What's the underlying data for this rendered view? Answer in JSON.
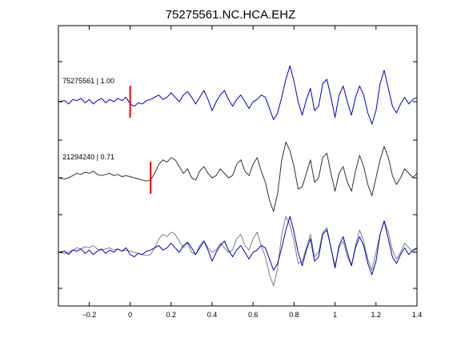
{
  "chart_data": {
    "type": "line",
    "title": "75275561.NC.HCA.EHZ",
    "xlabel": "",
    "ylabel": "",
    "xlim": [
      -0.35,
      1.4
    ],
    "x_ticks": [
      -0.2,
      0,
      0.2,
      0.4,
      0.6,
      0.8,
      1,
      1.2,
      1.4
    ],
    "x_tick_labels": [
      "−0.2",
      "0",
      "0.2",
      "0.4",
      "0.6",
      "0.8",
      "1",
      "1.2",
      "1.4"
    ],
    "grid": false,
    "colors": {
      "blue": "#0000cc",
      "dark": "#333333",
      "gray": "#7f7f7f",
      "pick": "#ff0000"
    },
    "annotations": [
      {
        "text": "75275561 | 1.00",
        "x": -0.33,
        "trace": 0
      },
      {
        "text": "21294240 | 0.71",
        "x": -0.33,
        "trace": 1
      }
    ],
    "picks": [
      {
        "x": 0.0,
        "trace": 0
      },
      {
        "x": 0.1,
        "trace": 1
      }
    ],
    "series": [
      {
        "color": "blue",
        "x": [
          -0.35,
          -0.32,
          -0.3,
          -0.28,
          -0.26,
          -0.24,
          -0.22,
          -0.2,
          -0.18,
          -0.16,
          -0.14,
          -0.12,
          -0.1,
          -0.08,
          -0.06,
          -0.04,
          -0.02,
          0,
          0.02,
          0.04,
          0.06,
          0.08,
          0.1,
          0.12,
          0.14,
          0.16,
          0.18,
          0.2,
          0.22,
          0.24,
          0.26,
          0.28,
          0.3,
          0.32,
          0.34,
          0.36,
          0.38,
          0.4,
          0.42,
          0.44,
          0.46,
          0.48,
          0.5,
          0.52,
          0.54,
          0.56,
          0.58,
          0.6,
          0.62,
          0.64,
          0.66,
          0.68,
          0.7,
          0.72,
          0.74,
          0.76,
          0.78,
          0.8,
          0.82,
          0.84,
          0.86,
          0.88,
          0.9,
          0.92,
          0.94,
          0.96,
          0.98,
          1,
          1.02,
          1.04,
          1.06,
          1.08,
          1.1,
          1.12,
          1.14,
          1.16,
          1.18,
          1.2,
          1.22,
          1.24,
          1.26,
          1.28,
          1.3,
          1.32,
          1.34,
          1.36,
          1.38,
          1.4
        ],
        "y": [
          0.0,
          0.05,
          -0.1,
          0.1,
          0.05,
          0.15,
          -0.05,
          0.1,
          -0.1,
          0.05,
          0.15,
          -0.05,
          0.1,
          0.0,
          0.15,
          0.05,
          0.2,
          -0.1,
          -0.2,
          -0.05,
          -0.1,
          0.05,
          0.1,
          0.2,
          0.3,
          0.1,
          0.2,
          0.4,
          0.2,
          0.0,
          0.3,
          0.45,
          0.2,
          -0.1,
          0.2,
          0.5,
          0.1,
          -0.4,
          0.0,
          0.3,
          0.5,
          0.1,
          -0.2,
          0.1,
          0.3,
          0.0,
          -0.3,
          0.0,
          0.1,
          0.3,
          0.2,
          -0.3,
          -0.8,
          -0.5,
          0.2,
          1.0,
          1.6,
          0.9,
          0.0,
          -0.6,
          0.1,
          0.6,
          -0.4,
          -0.2,
          0.8,
          1.0,
          0.2,
          -0.7,
          0.3,
          0.7,
          0.0,
          -0.6,
          0.2,
          0.7,
          0.3,
          -0.5,
          -1.0,
          -0.4,
          0.8,
          1.4,
          0.6,
          -0.2,
          -0.5,
          -0.1,
          0.2,
          -0.1,
          0.1,
          0.2
        ]
      },
      {
        "color": "dark",
        "x": [
          -0.35,
          -0.32,
          -0.3,
          -0.28,
          -0.26,
          -0.24,
          -0.22,
          -0.2,
          -0.18,
          -0.16,
          -0.14,
          -0.12,
          -0.1,
          -0.08,
          -0.06,
          -0.04,
          -0.02,
          0,
          0.02,
          0.04,
          0.06,
          0.08,
          0.1,
          0.12,
          0.14,
          0.16,
          0.18,
          0.2,
          0.22,
          0.24,
          0.26,
          0.28,
          0.3,
          0.32,
          0.34,
          0.36,
          0.38,
          0.4,
          0.42,
          0.44,
          0.46,
          0.48,
          0.5,
          0.52,
          0.54,
          0.56,
          0.58,
          0.6,
          0.62,
          0.64,
          0.66,
          0.68,
          0.7,
          0.72,
          0.74,
          0.76,
          0.78,
          0.8,
          0.82,
          0.84,
          0.86,
          0.88,
          0.9,
          0.92,
          0.94,
          0.96,
          0.98,
          1,
          1.02,
          1.04,
          1.06,
          1.08,
          1.1,
          1.12,
          1.14,
          1.16,
          1.18,
          1.2,
          1.22,
          1.24,
          1.26,
          1.28,
          1.3,
          1.32,
          1.34,
          1.36,
          1.38,
          1.4
        ],
        "y": [
          0.0,
          -0.05,
          0.0,
          0.1,
          0.2,
          0.15,
          0.25,
          0.2,
          0.3,
          0.15,
          0.1,
          0.15,
          0.2,
          0.1,
          0.15,
          0.05,
          0.1,
          0.05,
          0.0,
          -0.05,
          -0.1,
          -0.15,
          -0.1,
          0.2,
          0.6,
          0.8,
          0.7,
          0.9,
          0.8,
          0.5,
          0.2,
          0.4,
          0.0,
          -0.1,
          0.3,
          0.5,
          0.2,
          0.0,
          0.1,
          0.4,
          0.2,
          0.0,
          0.1,
          0.6,
          0.8,
          0.3,
          0.1,
          0.6,
          0.9,
          0.3,
          -0.2,
          -1.0,
          -1.5,
          -0.7,
          0.8,
          1.6,
          1.2,
          0.5,
          -0.5,
          -0.4,
          0.2,
          0.8,
          -0.2,
          0.0,
          0.9,
          1.1,
          0.2,
          -0.6,
          0.2,
          0.5,
          -0.2,
          -0.6,
          0.3,
          1.0,
          0.5,
          -0.3,
          -0.8,
          0.0,
          0.8,
          1.4,
          0.9,
          0.1,
          -0.3,
          0.0,
          0.4,
          0.2,
          0.0,
          0.2
        ]
      },
      {
        "color": "gray",
        "x": [
          -0.35,
          -0.32,
          -0.3,
          -0.28,
          -0.26,
          -0.24,
          -0.22,
          -0.2,
          -0.18,
          -0.16,
          -0.14,
          -0.12,
          -0.1,
          -0.08,
          -0.06,
          -0.04,
          -0.02,
          0,
          0.02,
          0.04,
          0.06,
          0.08,
          0.1,
          0.12,
          0.14,
          0.16,
          0.18,
          0.2,
          0.22,
          0.24,
          0.26,
          0.28,
          0.3,
          0.32,
          0.34,
          0.36,
          0.38,
          0.4,
          0.42,
          0.44,
          0.46,
          0.48,
          0.5,
          0.52,
          0.54,
          0.56,
          0.58,
          0.6,
          0.62,
          0.64,
          0.66,
          0.68,
          0.7,
          0.72,
          0.74,
          0.76,
          0.78,
          0.8,
          0.82,
          0.84,
          0.86,
          0.88,
          0.9,
          0.92,
          0.94,
          0.96,
          0.98,
          1,
          1.02,
          1.04,
          1.06,
          1.08,
          1.1,
          1.12,
          1.14,
          1.16,
          1.18,
          1.2,
          1.22,
          1.24,
          1.26,
          1.28,
          1.3,
          1.32,
          1.34,
          1.36,
          1.38,
          1.4
        ],
        "y": [
          0.0,
          -0.05,
          0.0,
          0.1,
          0.2,
          0.15,
          0.25,
          0.2,
          0.3,
          0.15,
          0.1,
          0.15,
          0.2,
          0.1,
          0.15,
          0.05,
          0.1,
          0.05,
          0.0,
          -0.05,
          -0.1,
          -0.15,
          -0.1,
          0.2,
          0.6,
          0.8,
          0.7,
          0.9,
          0.8,
          0.5,
          0.2,
          0.4,
          0.0,
          -0.1,
          0.3,
          0.5,
          0.2,
          0.0,
          0.1,
          0.4,
          0.2,
          0.0,
          0.1,
          0.6,
          0.8,
          0.3,
          0.1,
          0.6,
          0.9,
          0.3,
          -0.2,
          -1.0,
          -1.5,
          -0.7,
          0.8,
          1.6,
          1.2,
          0.5,
          -0.5,
          -0.4,
          0.2,
          0.8,
          -0.2,
          0.0,
          0.9,
          1.1,
          0.2,
          -0.6,
          0.2,
          0.5,
          -0.2,
          -0.6,
          0.3,
          1.0,
          0.5,
          -0.3,
          -0.8,
          0.0,
          0.8,
          1.4,
          0.9,
          0.1,
          -0.3,
          0.0,
          0.4,
          0.2,
          0.0,
          0.2
        ]
      },
      {
        "color": "blue",
        "x": [
          -0.35,
          -0.32,
          -0.3,
          -0.28,
          -0.26,
          -0.24,
          -0.22,
          -0.2,
          -0.18,
          -0.16,
          -0.14,
          -0.12,
          -0.1,
          -0.08,
          -0.06,
          -0.04,
          -0.02,
          0,
          0.02,
          0.04,
          0.06,
          0.08,
          0.1,
          0.12,
          0.14,
          0.16,
          0.18,
          0.2,
          0.22,
          0.24,
          0.26,
          0.28,
          0.3,
          0.32,
          0.34,
          0.36,
          0.38,
          0.4,
          0.42,
          0.44,
          0.46,
          0.48,
          0.5,
          0.52,
          0.54,
          0.56,
          0.58,
          0.6,
          0.62,
          0.64,
          0.66,
          0.68,
          0.7,
          0.72,
          0.74,
          0.76,
          0.78,
          0.8,
          0.82,
          0.84,
          0.86,
          0.88,
          0.9,
          0.92,
          0.94,
          0.96,
          0.98,
          1,
          1.02,
          1.04,
          1.06,
          1.08,
          1.1,
          1.12,
          1.14,
          1.16,
          1.18,
          1.2,
          1.22,
          1.24,
          1.26,
          1.28,
          1.3,
          1.32,
          1.34,
          1.36,
          1.38,
          1.4
        ],
        "y": [
          0.0,
          0.05,
          -0.1,
          0.1,
          0.05,
          0.15,
          -0.05,
          0.1,
          -0.1,
          0.05,
          0.15,
          -0.05,
          0.1,
          0.0,
          0.15,
          0.05,
          0.2,
          -0.1,
          -0.2,
          -0.05,
          -0.1,
          0.05,
          0.1,
          0.2,
          0.3,
          0.1,
          0.2,
          0.4,
          0.2,
          0.0,
          0.3,
          0.45,
          0.2,
          -0.1,
          0.2,
          0.5,
          0.1,
          -0.4,
          0.0,
          0.3,
          0.5,
          0.1,
          -0.2,
          0.1,
          0.3,
          0.0,
          -0.3,
          0.0,
          0.1,
          0.3,
          0.2,
          -0.3,
          -0.8,
          -0.5,
          0.2,
          1.0,
          1.6,
          0.9,
          0.0,
          -0.6,
          0.1,
          0.6,
          -0.4,
          -0.2,
          0.8,
          1.0,
          0.2,
          -0.7,
          0.3,
          0.7,
          0.0,
          -0.6,
          0.2,
          0.7,
          0.3,
          -0.5,
          -1.0,
          -0.4,
          0.8,
          1.4,
          0.6,
          -0.2,
          -0.5,
          -0.1,
          0.2,
          -0.1,
          0.1,
          0.2
        ]
      }
    ]
  }
}
